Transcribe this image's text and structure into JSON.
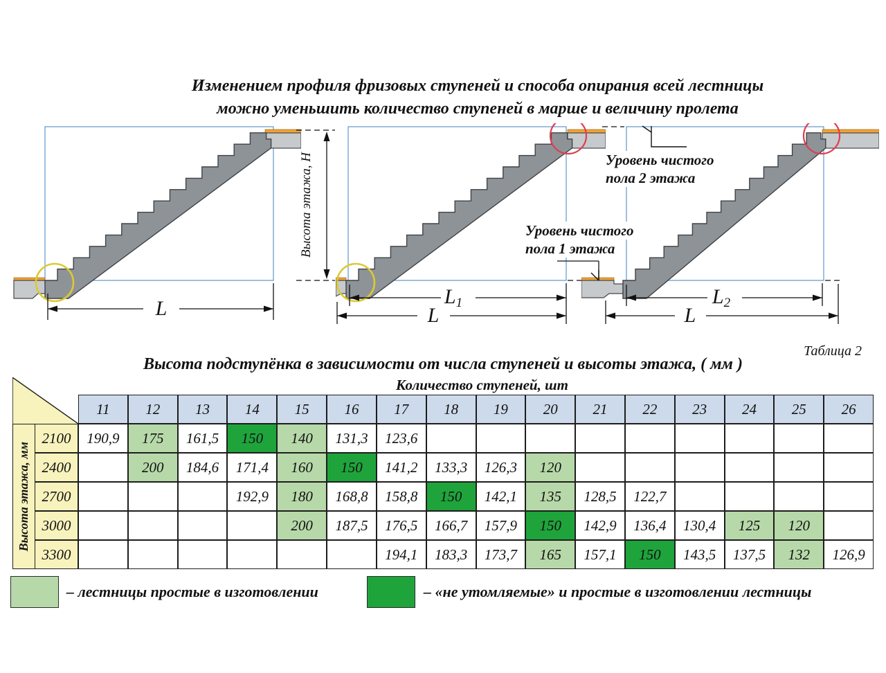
{
  "title": {
    "line1": "Изменением профиля фризовых ступеней и способа опирания всей лестницы",
    "line2": "можно уменьшить количество ступеней в марше и величину пролета"
  },
  "diagrams": {
    "floor_height_label": "Высота этажа, Н",
    "level2_line1": "Уровень чистого",
    "level2_line2": "пола 2 этажа",
    "level1_line1": "Уровень чистого",
    "level1_line2": "пола 1 этажа",
    "dim_l": "L",
    "dim_l1_main": "L",
    "dim_l1_sub": "1",
    "dim_l2_main": "L",
    "dim_l2_sub": "2"
  },
  "table": {
    "caption": "Таблица 2",
    "title": "Высота подступёнка  в зависимости от числа ступеней и высоты этажа,  ( мм )",
    "col_group_label": "Количество ступеней, шт",
    "row_group_label": "Высота этажа, мм",
    "columns": [
      "11",
      "12",
      "13",
      "14",
      "15",
      "16",
      "17",
      "18",
      "19",
      "20",
      "21",
      "22",
      "23",
      "24",
      "25",
      "26"
    ],
    "rows": [
      {
        "header": "2100",
        "cells": [
          [
            "190,9",
            ""
          ],
          [
            "175",
            "light"
          ],
          [
            "161,5",
            ""
          ],
          [
            "150",
            "dark"
          ],
          [
            "140",
            "light"
          ],
          [
            "131,3",
            ""
          ],
          [
            "123,6",
            ""
          ],
          [
            "",
            ""
          ],
          [
            "",
            ""
          ],
          [
            "",
            ""
          ],
          [
            "",
            ""
          ],
          [
            "",
            ""
          ],
          [
            "",
            ""
          ],
          [
            "",
            ""
          ],
          [
            "",
            ""
          ],
          [
            "",
            ""
          ]
        ]
      },
      {
        "header": "2400",
        "cells": [
          [
            "",
            ""
          ],
          [
            "200",
            "light"
          ],
          [
            "184,6",
            ""
          ],
          [
            "171,4",
            ""
          ],
          [
            "160",
            "light"
          ],
          [
            "150",
            "dark"
          ],
          [
            "141,2",
            ""
          ],
          [
            "133,3",
            ""
          ],
          [
            "126,3",
            ""
          ],
          [
            "120",
            "light"
          ],
          [
            "",
            ""
          ],
          [
            "",
            ""
          ],
          [
            "",
            ""
          ],
          [
            "",
            ""
          ],
          [
            "",
            ""
          ],
          [
            "",
            ""
          ]
        ]
      },
      {
        "header": "2700",
        "cells": [
          [
            "",
            ""
          ],
          [
            "",
            ""
          ],
          [
            "",
            ""
          ],
          [
            "192,9",
            ""
          ],
          [
            "180",
            "light"
          ],
          [
            "168,8",
            ""
          ],
          [
            "158,8",
            ""
          ],
          [
            "150",
            "dark"
          ],
          [
            "142,1",
            ""
          ],
          [
            "135",
            "light"
          ],
          [
            "128,5",
            ""
          ],
          [
            "122,7",
            ""
          ],
          [
            "",
            ""
          ],
          [
            "",
            ""
          ],
          [
            "",
            ""
          ],
          [
            "",
            ""
          ]
        ]
      },
      {
        "header": "3000",
        "cells": [
          [
            "",
            ""
          ],
          [
            "",
            ""
          ],
          [
            "",
            ""
          ],
          [
            "",
            ""
          ],
          [
            "200",
            "light"
          ],
          [
            "187,5",
            ""
          ],
          [
            "176,5",
            ""
          ],
          [
            "166,7",
            ""
          ],
          [
            "157,9",
            ""
          ],
          [
            "150",
            "dark"
          ],
          [
            "142,9",
            ""
          ],
          [
            "136,4",
            ""
          ],
          [
            "130,4",
            ""
          ],
          [
            "125",
            "light"
          ],
          [
            "120",
            "light"
          ],
          [
            "",
            ""
          ]
        ]
      },
      {
        "header": "3300",
        "cells": [
          [
            "",
            ""
          ],
          [
            "",
            ""
          ],
          [
            "",
            ""
          ],
          [
            "",
            ""
          ],
          [
            "",
            ""
          ],
          [
            "",
            ""
          ],
          [
            "194,1",
            ""
          ],
          [
            "183,3",
            ""
          ],
          [
            "173,7",
            ""
          ],
          [
            "165",
            "light"
          ],
          [
            "157,1",
            ""
          ],
          [
            "150",
            "dark"
          ],
          [
            "143,5",
            ""
          ],
          [
            "137,5",
            ""
          ],
          [
            "132",
            "light"
          ],
          [
            "126,9",
            ""
          ]
        ]
      }
    ]
  },
  "legend": {
    "light_label": "– лестницы простые в изготовлении",
    "dark_label": "– «не утомляемые» и простые в изготовлении лестницы"
  },
  "colors": {
    "grid_blue": "#3f80c0",
    "stair_gray": "#8e9398",
    "slab_gray": "#c6cacd",
    "finish_floor_orange": "#f2a233",
    "highlight_circle_yellow": "#dcca32",
    "highlight_circle_red": "#e23c50",
    "header_blue": "#ccdaeb",
    "row_header_yellow": "#f8f3bd",
    "legend_light_green": "#b7d9a9",
    "legend_dark_green": "#1fa43c"
  },
  "chart_data": {
    "type": "table",
    "title": "Высота подступёнка в зависимости от числа ступеней и высоты этажа, (мм)",
    "x_label": "Количество ступеней, шт",
    "y_label": "Высота этажа, мм",
    "columns": [
      11,
      12,
      13,
      14,
      15,
      16,
      17,
      18,
      19,
      20,
      21,
      22,
      23,
      24,
      25,
      26
    ],
    "rows": [
      {
        "floor_height_mm": 2100,
        "riser_heights": [
          190.9,
          175,
          161.5,
          150,
          140,
          131.3,
          123.6,
          null,
          null,
          null,
          null,
          null,
          null,
          null,
          null,
          null
        ]
      },
      {
        "floor_height_mm": 2400,
        "riser_heights": [
          null,
          200,
          184.6,
          171.4,
          160,
          150,
          141.2,
          133.3,
          126.3,
          120,
          null,
          null,
          null,
          null,
          null,
          null
        ]
      },
      {
        "floor_height_mm": 2700,
        "riser_heights": [
          null,
          null,
          null,
          192.9,
          180,
          168.8,
          158.8,
          150,
          142.1,
          135,
          128.5,
          122.7,
          null,
          null,
          null,
          null
        ]
      },
      {
        "floor_height_mm": 3000,
        "riser_heights": [
          null,
          null,
          null,
          null,
          200,
          187.5,
          176.5,
          166.7,
          157.9,
          150,
          142.9,
          136.4,
          130.4,
          125,
          120,
          null
        ]
      },
      {
        "floor_height_mm": 3300,
        "riser_heights": [
          null,
          null,
          null,
          null,
          null,
          null,
          194.1,
          183.3,
          173.7,
          165,
          157.1,
          150,
          143.5,
          137.5,
          132,
          126.9
        ]
      }
    ]
  }
}
